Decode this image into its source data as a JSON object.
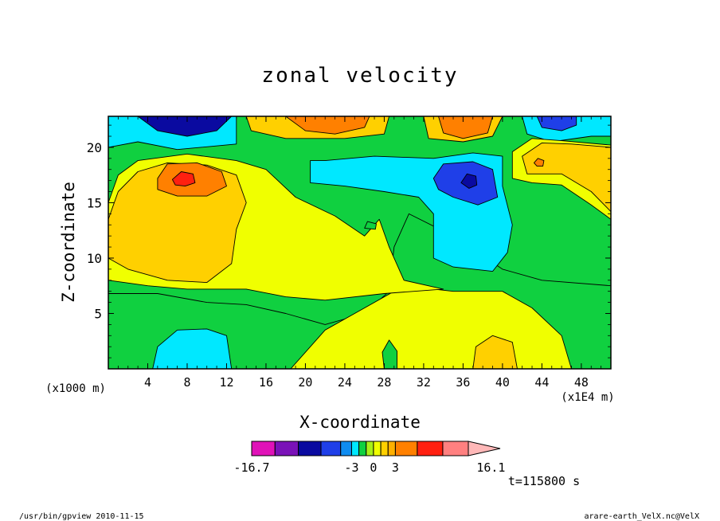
{
  "chart_data": {
    "type": "contour",
    "title": "zonal velocity",
    "xlabel": "X-coordinate",
    "ylabel": "Z-coordinate",
    "x_unit_left": "(x1000 m)",
    "x_unit_right": "(x1E4 m)",
    "xlim": [
      0,
      51
    ],
    "ylim": [
      0,
      22.8
    ],
    "x_ticks": [
      "4",
      "8",
      "12",
      "16",
      "20",
      "24",
      "28",
      "32",
      "36",
      "40",
      "44",
      "48"
    ],
    "y_ticks": [
      "5",
      "10",
      "15",
      "20"
    ],
    "x_tick_values": [
      4,
      8,
      12,
      16,
      20,
      24,
      28,
      32,
      36,
      40,
      44,
      48
    ],
    "y_tick_values": [
      5,
      10,
      15,
      20
    ],
    "colorbar": {
      "labels": [
        "-16.7",
        "-3",
        "0",
        "3",
        "16.1"
      ],
      "label_values": [
        -16.7,
        -3,
        0,
        3,
        16.1
      ],
      "bands": [
        {
          "from": -16.7,
          "to": -13.5,
          "color": "#e012b8"
        },
        {
          "from": -13.5,
          "to": -10.3,
          "color": "#7a12b8"
        },
        {
          "from": -10.3,
          "to": -7.2,
          "color": "#0a0aa0"
        },
        {
          "from": -7.2,
          "to": -4.5,
          "color": "#1f3fe8"
        },
        {
          "from": -4.5,
          "to": -3.0,
          "color": "#0f8cf0"
        },
        {
          "from": -3.0,
          "to": -2.0,
          "color": "#00e8ff"
        },
        {
          "from": -2.0,
          "to": -1.0,
          "color": "#10d040"
        },
        {
          "from": -1.0,
          "to": 0.0,
          "color": "#a8f018"
        },
        {
          "from": 0.0,
          "to": 1.0,
          "color": "#f0ff00"
        },
        {
          "from": 1.0,
          "to": 2.0,
          "color": "#ffd000"
        },
        {
          "from": 2.0,
          "to": 3.0,
          "color": "#ffb000"
        },
        {
          "from": 3.0,
          "to": 6.0,
          "color": "#ff8000"
        },
        {
          "from": 6.0,
          "to": 9.5,
          "color": "#ff2010"
        },
        {
          "from": 9.5,
          "to": 13.0,
          "color": "#ff8080"
        },
        {
          "from": 13.0,
          "to": 16.1,
          "color": "#ffb8b8"
        }
      ]
    },
    "regions": [
      {
        "color": "#00e8ff",
        "points": [
          [
            0,
            20
          ],
          [
            3,
            20.5
          ],
          [
            7,
            19.8
          ],
          [
            13,
            20.3
          ],
          [
            13,
            22.8
          ],
          [
            0,
            22.8
          ]
        ]
      },
      {
        "color": "#0a0aa0",
        "points": [
          [
            3,
            22.8
          ],
          [
            5,
            21.5
          ],
          [
            8,
            21
          ],
          [
            11,
            21.5
          ],
          [
            12.5,
            22.8
          ]
        ]
      },
      {
        "color": "#ffd000",
        "points": [
          [
            14,
            22.8
          ],
          [
            14.5,
            21.5
          ],
          [
            18,
            20.8
          ],
          [
            24,
            20.8
          ],
          [
            28,
            21.2
          ],
          [
            28.5,
            22.8
          ]
        ]
      },
      {
        "color": "#ff8000",
        "points": [
          [
            18,
            22.8
          ],
          [
            20,
            21.5
          ],
          [
            23,
            21.2
          ],
          [
            26,
            21.8
          ],
          [
            26.5,
            22.8
          ]
        ]
      },
      {
        "color": "#ffd000",
        "points": [
          [
            32,
            22.8
          ],
          [
            32.5,
            20.8
          ],
          [
            36,
            20.5
          ],
          [
            39,
            21
          ],
          [
            40,
            22.8
          ]
        ]
      },
      {
        "color": "#ff8000",
        "points": [
          [
            33.5,
            22.8
          ],
          [
            34,
            21.3
          ],
          [
            36,
            20.8
          ],
          [
            38.5,
            21.3
          ],
          [
            39,
            22.8
          ]
        ]
      },
      {
        "color": "#00e8ff",
        "points": [
          [
            42,
            22.8
          ],
          [
            42.5,
            21.2
          ],
          [
            45,
            20.5
          ],
          [
            49,
            21
          ],
          [
            51,
            21
          ],
          [
            51,
            22.8
          ]
        ]
      },
      {
        "color": "#1f3fe8",
        "points": [
          [
            43.5,
            22.8
          ],
          [
            44,
            21.8
          ],
          [
            46,
            21.5
          ],
          [
            47.5,
            22
          ],
          [
            47.5,
            22.8
          ]
        ]
      },
      {
        "color": "#10d040",
        "points": [
          [
            0,
            0
          ],
          [
            0,
            6.8
          ],
          [
            5,
            6.8
          ],
          [
            10,
            6
          ],
          [
            14,
            5.8
          ],
          [
            18,
            5
          ],
          [
            22,
            4
          ],
          [
            26,
            5
          ],
          [
            28.5,
            7
          ],
          [
            29,
            11
          ],
          [
            30.5,
            14
          ],
          [
            35,
            12
          ],
          [
            40,
            9
          ],
          [
            44,
            8
          ],
          [
            51,
            7.5
          ],
          [
            51,
            0
          ]
        ]
      },
      {
        "color": "#f0ff00",
        "points": [
          [
            18.5,
            0
          ],
          [
            22,
            3.5
          ],
          [
            25,
            5
          ],
          [
            30,
            7.5
          ],
          [
            35,
            7
          ],
          [
            40,
            7
          ],
          [
            43,
            5.5
          ],
          [
            46,
            3
          ],
          [
            47,
            0
          ]
        ]
      },
      {
        "color": "#00e8ff",
        "points": [
          [
            4.5,
            0
          ],
          [
            5,
            2
          ],
          [
            7,
            3.5
          ],
          [
            10,
            3.6
          ],
          [
            12,
            3
          ],
          [
            12.5,
            0
          ]
        ]
      },
      {
        "color": "#10d040",
        "points": [
          [
            28,
            0
          ],
          [
            27.8,
            1.5
          ],
          [
            28.5,
            2.6
          ],
          [
            29.3,
            1.6
          ],
          [
            29.3,
            0
          ]
        ]
      },
      {
        "color": "#ffd000",
        "points": [
          [
            37,
            0
          ],
          [
            37.3,
            2
          ],
          [
            39,
            3
          ],
          [
            41,
            2.4
          ],
          [
            41.5,
            0
          ]
        ]
      },
      {
        "color": "#f0ff00",
        "points": [
          [
            0,
            15
          ],
          [
            1,
            17.5
          ],
          [
            3,
            18.8
          ],
          [
            8,
            19.4
          ],
          [
            13,
            18.8
          ],
          [
            16,
            18
          ],
          [
            19,
            15.5
          ],
          [
            23,
            13.8
          ],
          [
            26,
            12
          ],
          [
            27.5,
            13.5
          ],
          [
            28.5,
            11
          ],
          [
            30,
            8
          ],
          [
            34,
            7.2
          ],
          [
            28,
            6.8
          ],
          [
            22,
            6.2
          ],
          [
            18,
            6.5
          ],
          [
            14,
            7.2
          ],
          [
            8,
            7.2
          ],
          [
            4,
            7.5
          ],
          [
            0,
            8
          ]
        ]
      },
      {
        "color": "#ffd000",
        "points": [
          [
            0,
            13.5
          ],
          [
            1,
            16
          ],
          [
            3,
            17.8
          ],
          [
            6,
            18.6
          ],
          [
            10,
            18.4
          ],
          [
            13,
            17.5
          ],
          [
            14,
            15
          ],
          [
            13,
            12.6
          ],
          [
            12.5,
            9.5
          ],
          [
            10,
            7.8
          ],
          [
            6,
            8
          ],
          [
            2,
            9
          ],
          [
            0,
            10
          ]
        ]
      },
      {
        "color": "#ff8000",
        "points": [
          [
            5,
            17.2
          ],
          [
            6,
            18.5
          ],
          [
            9,
            18.6
          ],
          [
            11.5,
            17.8
          ],
          [
            12,
            16.5
          ],
          [
            10,
            15.6
          ],
          [
            7,
            15.6
          ],
          [
            5,
            16.2
          ]
        ]
      },
      {
        "color": "#ff2010",
        "points": [
          [
            6.5,
            17.1
          ],
          [
            7.4,
            17.8
          ],
          [
            8.6,
            17.6
          ],
          [
            8.8,
            16.8
          ],
          [
            7.8,
            16.5
          ],
          [
            6.8,
            16.6
          ]
        ]
      },
      {
        "color": "#00e8ff",
        "points": [
          [
            20.5,
            18.8
          ],
          [
            22,
            18.8
          ],
          [
            27,
            19.2
          ],
          [
            33,
            19
          ],
          [
            37,
            19.5
          ],
          [
            40,
            19.2
          ],
          [
            40,
            16.5
          ],
          [
            41,
            13
          ],
          [
            40.5,
            10.5
          ],
          [
            39,
            8.8
          ],
          [
            35,
            9.2
          ],
          [
            33,
            10
          ],
          [
            33,
            14
          ],
          [
            31.5,
            15.5
          ],
          [
            28,
            16
          ],
          [
            24,
            16.5
          ],
          [
            20.5,
            16.8
          ]
        ]
      },
      {
        "color": "#1f3fe8",
        "points": [
          [
            33,
            17.2
          ],
          [
            34,
            18.5
          ],
          [
            37,
            18.7
          ],
          [
            39,
            18
          ],
          [
            39.5,
            15.5
          ],
          [
            37.5,
            14.8
          ],
          [
            35,
            15.5
          ],
          [
            33.5,
            16.2
          ]
        ]
      },
      {
        "color": "#0a0aa0",
        "points": [
          [
            35.8,
            16.8
          ],
          [
            36.4,
            17.6
          ],
          [
            37.3,
            17.4
          ],
          [
            37.4,
            16.6
          ],
          [
            36.6,
            16.3
          ]
        ]
      },
      {
        "color": "#10d040",
        "points": [
          [
            26,
            12.7
          ],
          [
            26.3,
            13.3
          ],
          [
            27.2,
            13.1
          ],
          [
            27.1,
            12.6
          ]
        ]
      },
      {
        "color": "#f0ff00",
        "points": [
          [
            41,
            19.6
          ],
          [
            43,
            20.8
          ],
          [
            46,
            20.6
          ],
          [
            51,
            20.2
          ],
          [
            51,
            13.5
          ],
          [
            49,
            14.8
          ],
          [
            46,
            16.6
          ],
          [
            43,
            16.8
          ],
          [
            41,
            17.2
          ]
        ]
      },
      {
        "color": "#ffd000",
        "points": [
          [
            42,
            19.2
          ],
          [
            44,
            20.4
          ],
          [
            47,
            20.3
          ],
          [
            51,
            20
          ],
          [
            51,
            14.2
          ],
          [
            49,
            16
          ],
          [
            46,
            17.6
          ],
          [
            42.5,
            17.6
          ]
        ]
      },
      {
        "color": "#ff8000",
        "points": [
          [
            43.2,
            18.6
          ],
          [
            43.6,
            19
          ],
          [
            44.2,
            18.8
          ],
          [
            44.1,
            18.3
          ],
          [
            43.5,
            18.3
          ]
        ]
      }
    ]
  },
  "annotation": {
    "time": "t=115800 s"
  },
  "footer": {
    "left": "/usr/bin/gpview  2010-11-15",
    "right": "arare-earth_VelX.nc@VelX"
  }
}
